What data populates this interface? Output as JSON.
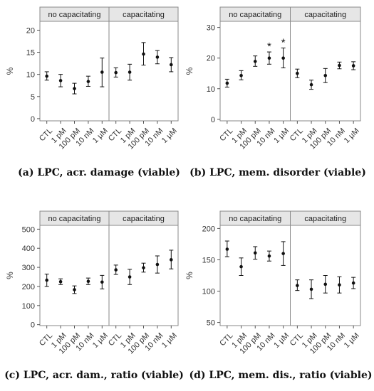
{
  "chart_data": [
    {
      "type": "scatter",
      "title": "(a) LPC, acr. damage (viable)",
      "ylabel": "%",
      "ylim": [
        -0.5,
        22
      ],
      "yticks": [
        0,
        5,
        10,
        15,
        20
      ],
      "categories": [
        "CTL",
        "1 pM",
        "100 pM",
        "10 nM",
        "1 µM"
      ],
      "panels": [
        {
          "label": "no capacitating",
          "mean": [
            9.6,
            8.6,
            6.8,
            8.4,
            10.5
          ],
          "lower": [
            8.7,
            7.2,
            5.6,
            7.3,
            7.2
          ],
          "upper": [
            10.6,
            10.0,
            8.0,
            9.6,
            13.7
          ],
          "stars": []
        },
        {
          "label": "capacitating",
          "mean": [
            10.4,
            10.5,
            14.6,
            13.9,
            12.2
          ],
          "lower": [
            9.4,
            8.7,
            12.1,
            12.4,
            10.6
          ],
          "upper": [
            11.5,
            12.3,
            17.2,
            15.4,
            13.8
          ],
          "stars": []
        }
      ]
    },
    {
      "type": "scatter",
      "title": "(b) LPC, mem. disorder (viable)",
      "ylabel": "%",
      "ylim": [
        -0.5,
        32
      ],
      "yticks": [
        0,
        10,
        20,
        30
      ],
      "categories": [
        "CTL",
        "1 pM",
        "100 pM",
        "10 nM",
        "1 µM"
      ],
      "panels": [
        {
          "label": "no capacitating",
          "mean": [
            11.8,
            14.3,
            18.9,
            20.0,
            20.0
          ],
          "lower": [
            10.5,
            12.9,
            17.3,
            18.0,
            16.8
          ],
          "upper": [
            13.1,
            15.9,
            20.7,
            22.0,
            23.3
          ],
          "stars": [
            "",
            "",
            "",
            "*",
            "*"
          ]
        },
        {
          "label": "capacitating",
          "mean": [
            15.0,
            11.3,
            14.3,
            17.6,
            17.5
          ],
          "lower": [
            13.6,
            9.8,
            12.0,
            16.5,
            16.2
          ],
          "upper": [
            16.4,
            12.8,
            16.6,
            18.7,
            18.8
          ],
          "stars": []
        }
      ]
    },
    {
      "type": "scatter",
      "title": "(c) LPC, acr. dam., ratio (viable)",
      "ylabel": "%",
      "ylim": [
        -5,
        520
      ],
      "yticks": [
        0,
        100,
        200,
        300,
        400,
        500
      ],
      "categories": [
        "CTL",
        "1 pM",
        "100 pM",
        "10 nM",
        "1 µM"
      ],
      "panels": [
        {
          "label": "no capacitating",
          "mean": [
            233,
            225,
            183,
            227,
            223
          ],
          "lower": [
            200,
            210,
            163,
            210,
            187
          ],
          "upper": [
            265,
            240,
            203,
            244,
            258
          ],
          "stars": []
        },
        {
          "label": "capacitating",
          "mean": [
            287,
            250,
            298,
            315,
            340
          ],
          "lower": [
            263,
            210,
            275,
            270,
            292
          ],
          "upper": [
            312,
            290,
            322,
            360,
            390
          ],
          "stars": []
        }
      ]
    },
    {
      "type": "scatter",
      "title": "(d) LPC, mem. dis., ratio (viable)",
      "ylabel": "%",
      "ylim": [
        45,
        205
      ],
      "yticks": [
        50,
        100,
        150,
        200
      ],
      "categories": [
        "CTL",
        "1 pM",
        "100 pM",
        "10 nM",
        "1 µM"
      ],
      "panels": [
        {
          "label": "no capacitating",
          "mean": [
            167,
            139,
            161,
            156,
            160
          ],
          "lower": [
            155,
            125,
            151,
            148,
            141
          ],
          "upper": [
            180,
            153,
            171,
            164,
            179
          ],
          "stars": []
        },
        {
          "label": "capacitating",
          "mean": [
            109,
            103,
            111,
            110,
            113
          ],
          "lower": [
            101,
            88,
            97,
            97,
            104
          ],
          "upper": [
            118,
            118,
            125,
            123,
            122
          ],
          "stars": []
        }
      ]
    }
  ]
}
